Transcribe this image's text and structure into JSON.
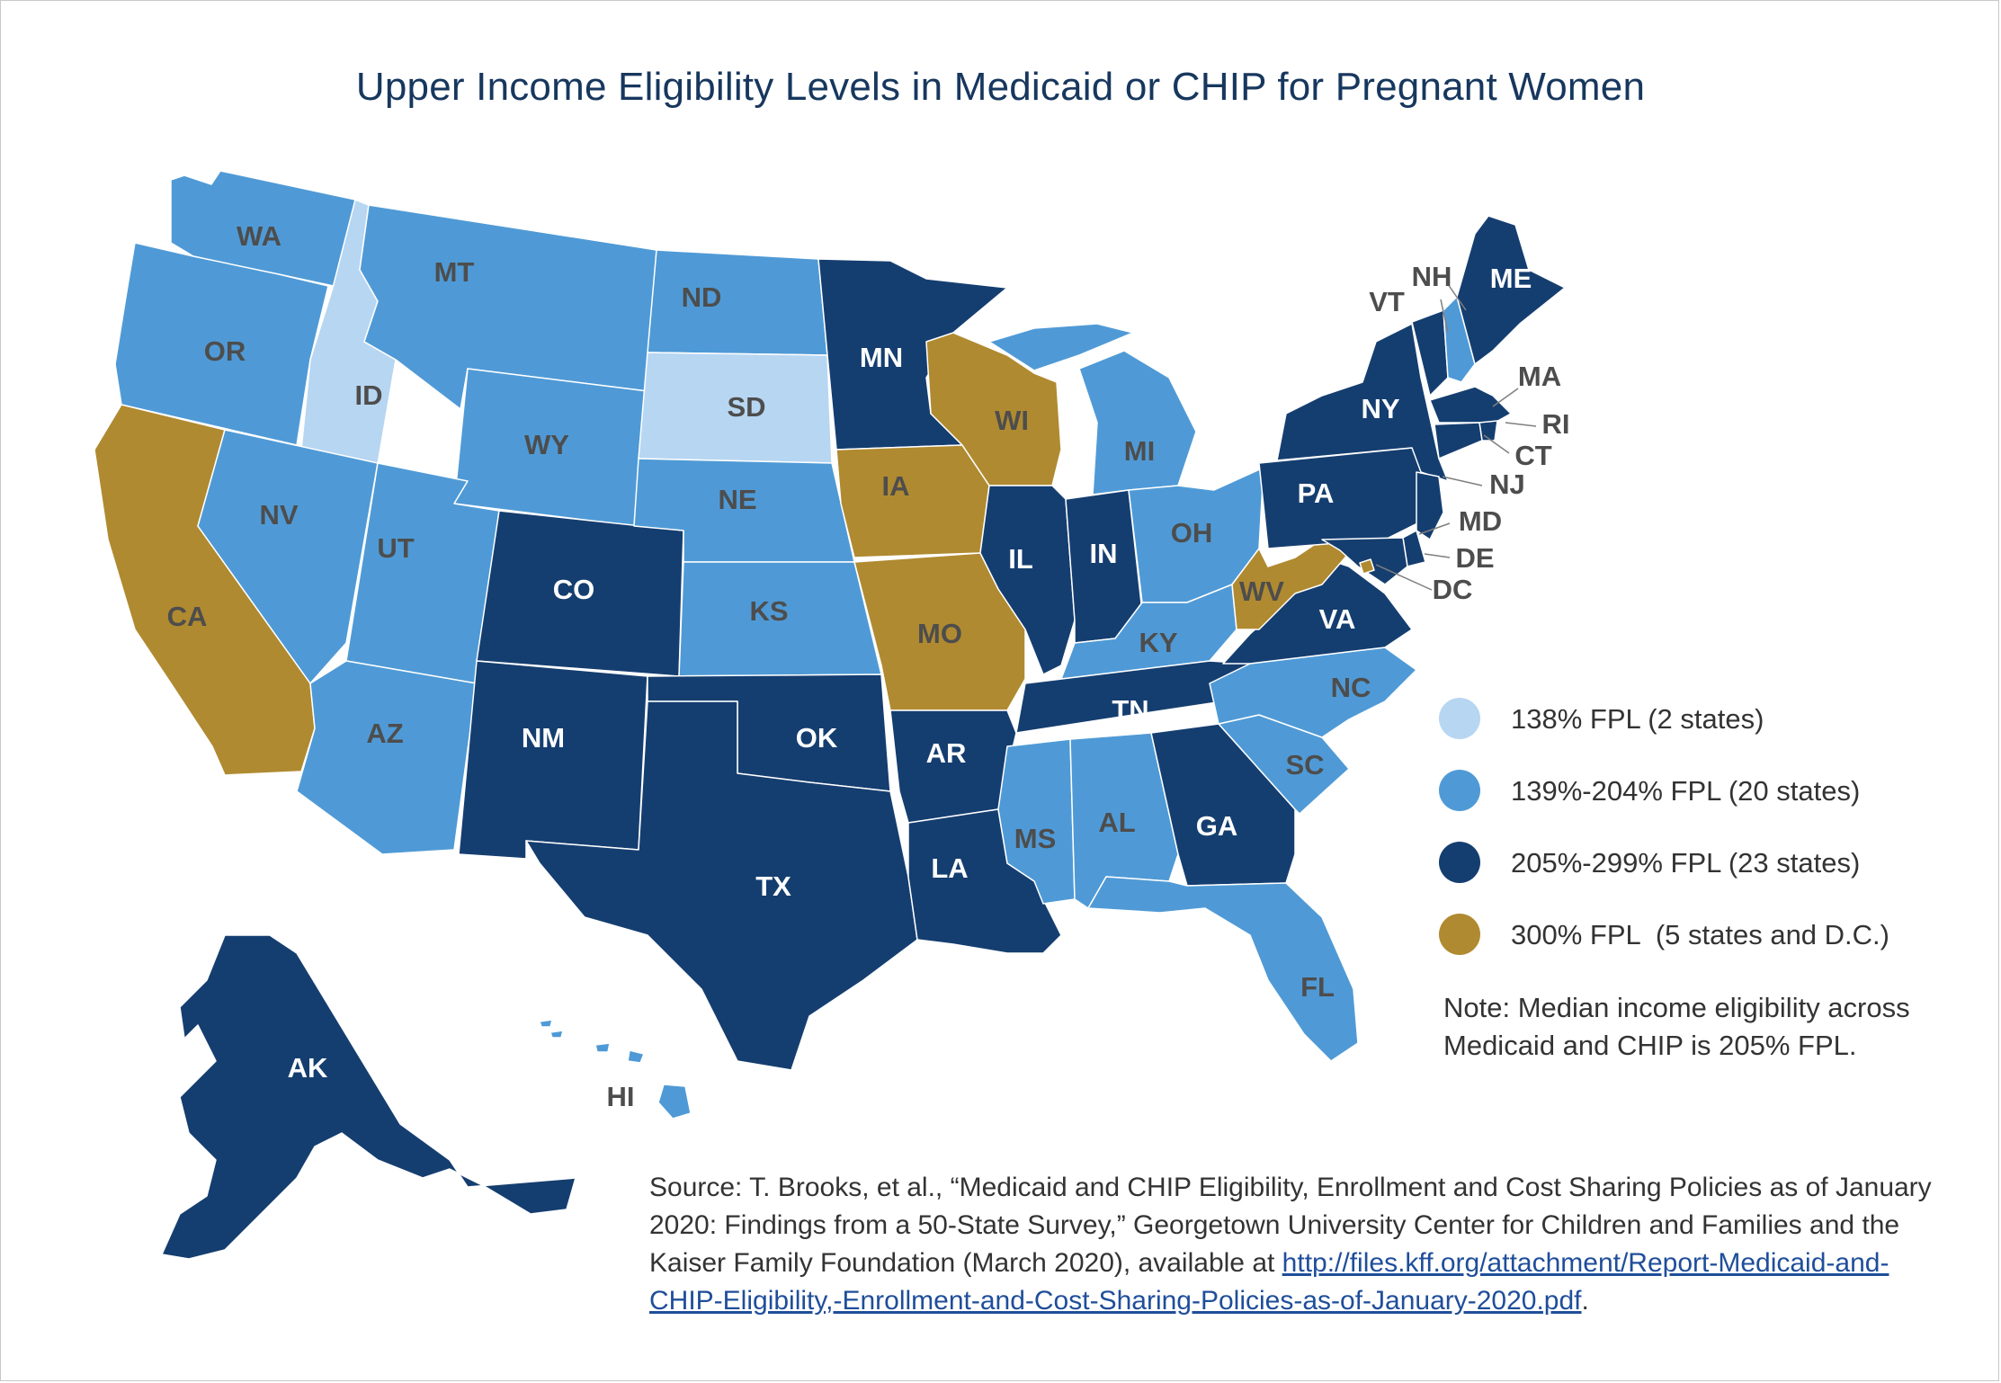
{
  "title": "Upper Income Eligibility Levels in Medicaid or CHIP for Pregnant Women",
  "colors": {
    "c138": "#b7d6f2",
    "c139_204": "#4f9ad6",
    "c205_299": "#153e70",
    "c300": "#b08a30"
  },
  "legend": [
    {
      "label": "138% FPL (2 states)",
      "color": "#b7d6f2"
    },
    {
      "label": "139%-204% FPL (20 states)",
      "color": "#4f9ad6"
    },
    {
      "label": "205%-299% FPL (23 states)",
      "color": "#153e70"
    },
    {
      "label": "300% FPL  (5 states and D.C.)",
      "color": "#b08a30"
    }
  ],
  "note": "Note: Median income eligibility across Medicaid and CHIP is 205% FPL.",
  "source": {
    "text": "Source: T. Brooks, et al., “Medicaid and CHIP Eligibility, Enrollment and Cost Sharing Policies as of January 2020: Findings from a 50-State Survey,” Georgetown University Center for Children and Families and the Kaiser Family Foundation (March 2020), available at ",
    "link": "http://files.kff.org/attachment/Report-Medicaid-and-CHIP-Eligibility,-Enrollment-and-Cost-Sharing-Policies-as-of-January-2020.pdf",
    "tail": "."
  },
  "states": {
    "WA": {
      "label": "WA",
      "category": "139-204"
    },
    "OR": {
      "label": "OR",
      "category": "139-204"
    },
    "CA": {
      "label": "CA",
      "category": "300"
    },
    "ID": {
      "label": "ID",
      "category": "138"
    },
    "NV": {
      "label": "NV",
      "category": "139-204"
    },
    "MT": {
      "label": "MT",
      "category": "139-204"
    },
    "WY": {
      "label": "WY",
      "category": "139-204"
    },
    "UT": {
      "label": "UT",
      "category": "139-204"
    },
    "AZ": {
      "label": "AZ",
      "category": "139-204"
    },
    "CO": {
      "label": "CO",
      "category": "205-299"
    },
    "NM": {
      "label": "NM",
      "category": "205-299"
    },
    "ND": {
      "label": "ND",
      "category": "139-204"
    },
    "SD": {
      "label": "SD",
      "category": "138"
    },
    "NE": {
      "label": "NE",
      "category": "139-204"
    },
    "KS": {
      "label": "KS",
      "category": "139-204"
    },
    "OK": {
      "label": "OK",
      "category": "205-299"
    },
    "TX": {
      "label": "TX",
      "category": "205-299"
    },
    "MN": {
      "label": "MN",
      "category": "205-299"
    },
    "IA": {
      "label": "IA",
      "category": "300"
    },
    "MO": {
      "label": "MO",
      "category": "300"
    },
    "AR": {
      "label": "AR",
      "category": "205-299"
    },
    "LA": {
      "label": "LA",
      "category": "205-299"
    },
    "WI": {
      "label": "WI",
      "category": "300"
    },
    "IL": {
      "label": "IL",
      "category": "205-299"
    },
    "MI": {
      "label": "MI",
      "category": "139-204"
    },
    "IN": {
      "label": "IN",
      "category": "205-299"
    },
    "OH": {
      "label": "OH",
      "category": "139-204"
    },
    "KY": {
      "label": "KY",
      "category": "139-204"
    },
    "TN": {
      "label": "TN",
      "category": "205-299"
    },
    "MS": {
      "label": "MS",
      "category": "139-204"
    },
    "AL": {
      "label": "AL",
      "category": "139-204"
    },
    "GA": {
      "label": "GA",
      "category": "205-299"
    },
    "FL": {
      "label": "FL",
      "category": "139-204"
    },
    "SC": {
      "label": "SC",
      "category": "139-204"
    },
    "NC": {
      "label": "NC",
      "category": "139-204"
    },
    "VA": {
      "label": "VA",
      "category": "205-299"
    },
    "WV": {
      "label": "WV",
      "category": "300"
    },
    "PA": {
      "label": "PA",
      "category": "205-299"
    },
    "NY": {
      "label": "NY",
      "category": "205-299"
    },
    "VT": {
      "label": "VT",
      "category": "205-299"
    },
    "NH": {
      "label": "NH",
      "category": "139-204"
    },
    "ME": {
      "label": "ME",
      "category": "205-299"
    },
    "MA": {
      "label": "MA",
      "category": "205-299"
    },
    "RI": {
      "label": "RI",
      "category": "205-299"
    },
    "CT": {
      "label": "CT",
      "category": "205-299"
    },
    "NJ": {
      "label": "NJ",
      "category": "205-299"
    },
    "DE": {
      "label": "DE",
      "category": "205-299"
    },
    "MD": {
      "label": "MD",
      "category": "205-299"
    },
    "DC": {
      "label": "DC",
      "category": "300"
    },
    "AK": {
      "label": "AK",
      "category": "205-299"
    },
    "HI": {
      "label": "HI",
      "category": "139-204"
    }
  }
}
